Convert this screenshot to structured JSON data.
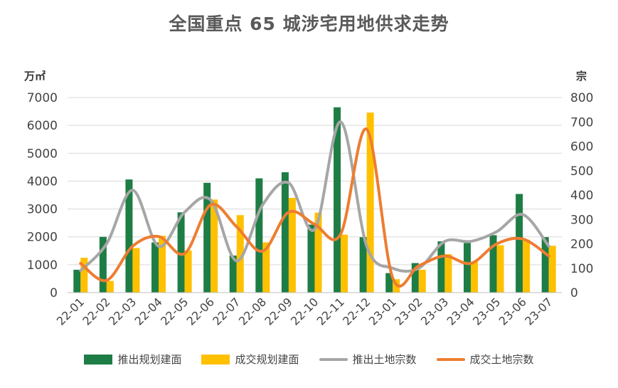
{
  "chart_data": {
    "type": "bar",
    "title": "全国重点 65 城涉宅用地供求走势",
    "categories": [
      "22-01",
      "22-02",
      "22-03",
      "22-04",
      "22-05",
      "22-06",
      "22-07",
      "22-08",
      "22-09",
      "22-10",
      "22-11",
      "22-12",
      "23-01",
      "23-02",
      "23-03",
      "23-04",
      "23-05",
      "23-06",
      "23-07"
    ],
    "ylabel_left": "万㎡",
    "ylabel_right": "宗",
    "ylim_left": [
      0,
      7000
    ],
    "ylim_right": [
      0,
      800
    ],
    "yticks_left": [
      0,
      1000,
      2000,
      3000,
      4000,
      5000,
      6000,
      7000
    ],
    "yticks_right": [
      0,
      100,
      200,
      300,
      400,
      500,
      600,
      700,
      800
    ],
    "grid": true,
    "legend_position": "bottom",
    "series": [
      {
        "name": "推出规划建面",
        "type": "bar",
        "axis": "left",
        "color": "#1e7d45",
        "values": [
          820,
          2000,
          4060,
          1800,
          2880,
          3940,
          1330,
          4100,
          4320,
          2440,
          6650,
          1990,
          700,
          1060,
          1840,
          1780,
          2060,
          3540,
          1990
        ]
      },
      {
        "name": "成交规划建面",
        "type": "bar",
        "axis": "left",
        "color": "#ffc000",
        "values": [
          1250,
          420,
          1600,
          2040,
          1510,
          3340,
          2780,
          1800,
          3400,
          2870,
          2080,
          6460,
          480,
          820,
          1380,
          1110,
          1700,
          1900,
          1680
        ]
      },
      {
        "name": "推出土地宗数",
        "type": "line",
        "axis": "right",
        "color": "#a6a6a6",
        "values": [
          90,
          200,
          420,
          190,
          330,
          380,
          130,
          360,
          450,
          260,
          700,
          190,
          100,
          100,
          210,
          210,
          250,
          320,
          190
        ]
      },
      {
        "name": "成交土地宗数",
        "type": "line",
        "axis": "right",
        "color": "#ed7d31",
        "values": [
          120,
          50,
          190,
          230,
          160,
          360,
          270,
          170,
          330,
          280,
          240,
          670,
          60,
          110,
          150,
          120,
          200,
          220,
          150
        ]
      }
    ]
  }
}
